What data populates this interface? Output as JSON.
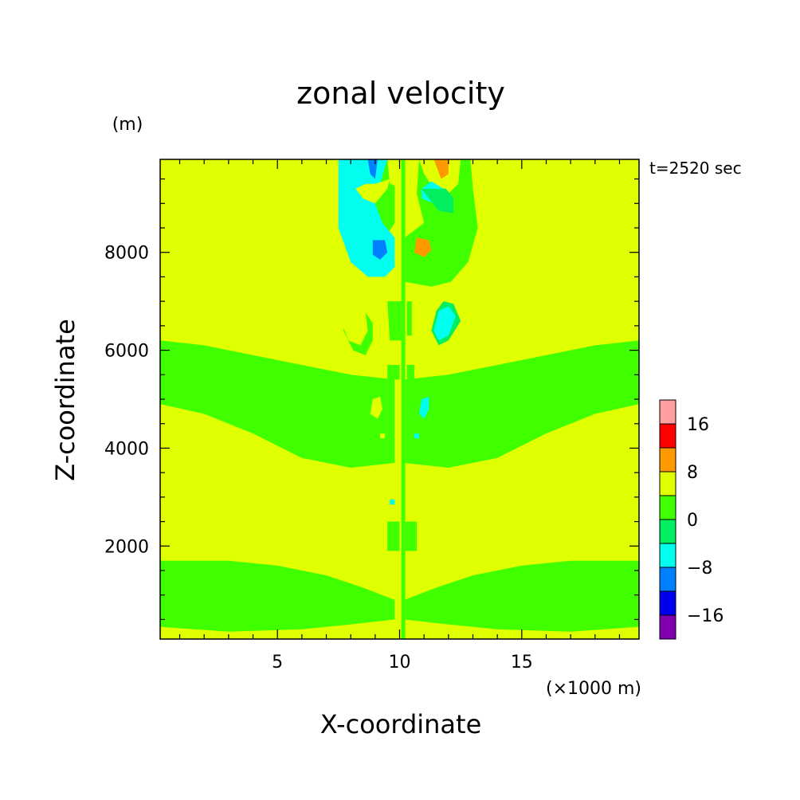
{
  "chart_data": {
    "type": "heatmap",
    "title": "zonal velocity",
    "time_label": "t=2520 sec",
    "xlabel": "X-coordinate",
    "x_unit": "(×1000 m)",
    "ylabel": "Z-coordinate",
    "y_unit": "(m)",
    "xlim": [
      0.2,
      19.8
    ],
    "ylim": [
      100,
      9900
    ],
    "x_ticks": [
      5,
      10,
      15
    ],
    "x_tick_labels": [
      "5",
      "10",
      "15"
    ],
    "y_ticks": [
      2000,
      4000,
      6000,
      8000
    ],
    "y_tick_labels": [
      "2000",
      "4000",
      "6000",
      "8000"
    ],
    "colorbar": {
      "levels": [
        -20,
        -16,
        -12,
        -8,
        -4,
        0,
        4,
        8,
        12,
        16,
        20
      ],
      "colors": [
        "#8000b0",
        "#0000ee",
        "#0080ff",
        "#00ffee",
        "#00ee60",
        "#40ff00",
        "#e0ff00",
        "#ff9900",
        "#ff0000",
        "#ff9f9f"
      ],
      "tick_labels": [
        {
          "value": 16,
          "label": "16"
        },
        {
          "value": 8,
          "label": "8"
        },
        {
          "value": 0,
          "label": "0"
        },
        {
          "value": -8,
          "label": "−8"
        },
        {
          "value": -16,
          "label": "−16"
        }
      ]
    },
    "background_level": 1,
    "regions": [
      {
        "level": 0,
        "points": [
          [
            0.2,
            6200
          ],
          [
            2,
            6100
          ],
          [
            4,
            5900
          ],
          [
            6,
            5700
          ],
          [
            8,
            5500
          ],
          [
            9.8,
            5400
          ],
          [
            9.8,
            3700
          ],
          [
            8,
            3600
          ],
          [
            6,
            3800
          ],
          [
            4,
            4300
          ],
          [
            2,
            4700
          ],
          [
            0.2,
            4900
          ]
        ]
      },
      {
        "level": 0,
        "points": [
          [
            19.8,
            6200
          ],
          [
            18,
            6100
          ],
          [
            16,
            5900
          ],
          [
            14,
            5700
          ],
          [
            12,
            5500
          ],
          [
            10.2,
            5400
          ],
          [
            10.2,
            3700
          ],
          [
            12,
            3600
          ],
          [
            14,
            3800
          ],
          [
            16,
            4300
          ],
          [
            18,
            4700
          ],
          [
            19.8,
            4900
          ]
        ]
      },
      {
        "level": 0,
        "points": [
          [
            0.2,
            1700
          ],
          [
            3,
            1700
          ],
          [
            5,
            1600
          ],
          [
            7,
            1400
          ],
          [
            8.5,
            1150
          ],
          [
            9.8,
            900
          ],
          [
            9.8,
            500
          ],
          [
            8,
            400
          ],
          [
            6,
            300
          ],
          [
            3,
            250
          ],
          [
            0.2,
            350
          ]
        ]
      },
      {
        "level": 0,
        "points": [
          [
            19.8,
            1700
          ],
          [
            17,
            1700
          ],
          [
            15,
            1600
          ],
          [
            13,
            1400
          ],
          [
            11.5,
            1150
          ],
          [
            10.2,
            900
          ],
          [
            10.2,
            500
          ],
          [
            12,
            400
          ],
          [
            14,
            300
          ],
          [
            17,
            250
          ],
          [
            19.8,
            350
          ]
        ]
      },
      {
        "level": 0,
        "points": [
          [
            7.9,
            6900
          ],
          [
            8.5,
            6850
          ],
          [
            8.9,
            6550
          ],
          [
            8.9,
            6200
          ],
          [
            8.6,
            5900
          ],
          [
            8.1,
            6000
          ],
          [
            7.7,
            6400
          ]
        ]
      },
      {
        "level": 0,
        "points": [
          [
            8.7,
            9900
          ],
          [
            9.8,
            9900
          ],
          [
            9.8,
            8600
          ],
          [
            9.4,
            8300
          ],
          [
            9.1,
            8700
          ],
          [
            8.8,
            9300
          ]
        ]
      },
      {
        "level": 0,
        "points": [
          [
            8.7,
            4950
          ],
          [
            9.0,
            5000
          ],
          [
            9.2,
            4800
          ],
          [
            9.0,
            4500
          ],
          [
            8.6,
            4600
          ]
        ]
      },
      {
        "level": 0,
        "points": [
          [
            10.8,
            9900
          ],
          [
            12.9,
            9900
          ],
          [
            13.0,
            9300
          ],
          [
            13.2,
            8500
          ],
          [
            12.8,
            7800
          ],
          [
            12.1,
            7400
          ],
          [
            11.3,
            7300
          ],
          [
            10.2,
            7400
          ],
          [
            10.2,
            8300
          ],
          [
            11.0,
            8600
          ],
          [
            10.7,
            9200
          ]
        ]
      },
      {
        "level": 1,
        "points": [
          [
            10.8,
            9900
          ],
          [
            12.5,
            9900
          ],
          [
            12.4,
            9400
          ],
          [
            12.0,
            9200
          ],
          [
            11.4,
            9300
          ],
          [
            11.0,
            9600
          ]
        ]
      },
      {
        "level": 1,
        "points": [
          [
            9.5,
            9900
          ],
          [
            10.2,
            9900
          ],
          [
            10.2,
            9300
          ],
          [
            9.6,
            9400
          ]
        ]
      },
      {
        "level": 2,
        "points": [
          [
            11.4,
            9900
          ],
          [
            12.0,
            9900
          ],
          [
            12.0,
            9600
          ],
          [
            11.7,
            9500
          ]
        ]
      },
      {
        "level": -2,
        "points": [
          [
            7.5,
            9900
          ],
          [
            9.5,
            9900
          ],
          [
            9.2,
            9400
          ],
          [
            9.0,
            9000
          ],
          [
            9.3,
            8600
          ],
          [
            9.8,
            8300
          ],
          [
            9.8,
            7700
          ],
          [
            9.4,
            7500
          ],
          [
            8.7,
            7500
          ],
          [
            8.0,
            7800
          ],
          [
            7.5,
            8500
          ]
        ]
      },
      {
        "level": -3,
        "points": [
          [
            8.7,
            9900
          ],
          [
            9.1,
            9900
          ],
          [
            9.0,
            9500
          ],
          [
            8.8,
            9600
          ]
        ]
      },
      {
        "level": -3,
        "points": [
          [
            8.9,
            8250
          ],
          [
            9.4,
            8250
          ],
          [
            9.5,
            8000
          ],
          [
            9.2,
            7850
          ],
          [
            8.9,
            7950
          ]
        ]
      },
      {
        "level": 1,
        "points": [
          [
            8.2,
            9300
          ],
          [
            8.5,
            9100
          ],
          [
            9.0,
            9000
          ],
          [
            9.5,
            9300
          ],
          [
            9.6,
            9500
          ],
          [
            9.0,
            9400
          ],
          [
            8.6,
            9400
          ]
        ]
      },
      {
        "level": 1,
        "points": [
          [
            7.7,
            6950
          ],
          [
            8.2,
            7050
          ],
          [
            8.6,
            6800
          ],
          [
            8.7,
            6400
          ],
          [
            8.4,
            6100
          ],
          [
            7.9,
            6200
          ],
          [
            7.6,
            6600
          ]
        ]
      },
      {
        "level": 2,
        "points": [
          [
            10.7,
            8300
          ],
          [
            11.2,
            8250
          ],
          [
            11.3,
            8050
          ],
          [
            11.0,
            7900
          ],
          [
            10.6,
            8000
          ]
        ]
      },
      {
        "level": -2,
        "points": [
          [
            10.9,
            9300
          ],
          [
            11.3,
            9450
          ],
          [
            11.8,
            9300
          ],
          [
            11.8,
            9050
          ],
          [
            11.4,
            9000
          ],
          [
            10.9,
            9100
          ]
        ]
      },
      {
        "level": -1,
        "points": [
          [
            10.9,
            9300
          ],
          [
            11.9,
            9300
          ],
          [
            12.2,
            9100
          ],
          [
            12.2,
            8800
          ],
          [
            11.6,
            8850
          ],
          [
            11.2,
            9100
          ]
        ]
      },
      {
        "level": -1,
        "points": [
          [
            11.5,
            6800
          ],
          [
            11.8,
            7000
          ],
          [
            12.2,
            6950
          ],
          [
            12.5,
            6600
          ],
          [
            12.0,
            6200
          ],
          [
            11.6,
            6100
          ],
          [
            11.3,
            6400
          ]
        ]
      },
      {
        "level": -2,
        "points": [
          [
            11.6,
            6800
          ],
          [
            12.0,
            6900
          ],
          [
            12.3,
            6700
          ],
          [
            12.0,
            6300
          ],
          [
            11.6,
            6200
          ],
          [
            11.4,
            6400
          ]
        ]
      },
      {
        "level": 1,
        "points": [
          [
            8.9,
            5000
          ],
          [
            9.2,
            5050
          ],
          [
            9.3,
            4800
          ],
          [
            9.1,
            4600
          ],
          [
            8.8,
            4700
          ]
        ]
      },
      {
        "level": -2,
        "points": [
          [
            10.9,
            5000
          ],
          [
            11.2,
            5050
          ],
          [
            11.2,
            4800
          ],
          [
            11.0,
            4600
          ],
          [
            10.8,
            4700
          ]
        ]
      },
      {
        "level": 1,
        "points": [
          [
            9.2,
            4300
          ],
          [
            9.4,
            4300
          ],
          [
            9.4,
            4200
          ],
          [
            9.2,
            4200
          ]
        ]
      },
      {
        "level": -2,
        "points": [
          [
            10.6,
            4300
          ],
          [
            10.8,
            4300
          ],
          [
            10.8,
            4200
          ],
          [
            10.6,
            4200
          ]
        ]
      },
      {
        "level": -2,
        "points": [
          [
            9.6,
            2950
          ],
          [
            9.8,
            2950
          ],
          [
            9.8,
            2850
          ],
          [
            9.6,
            2850
          ]
        ]
      },
      {
        "level": 1,
        "points": [
          [
            10.4,
            2950
          ],
          [
            10.6,
            2950
          ],
          [
            10.6,
            2850
          ],
          [
            10.4,
            2850
          ]
        ]
      },
      {
        "level": 0,
        "points": [
          [
            9.5,
            7000
          ],
          [
            10.2,
            7000
          ],
          [
            10.2,
            6200
          ],
          [
            9.6,
            6200
          ]
        ]
      },
      {
        "level": 0,
        "points": [
          [
            10.3,
            7000
          ],
          [
            10.5,
            7000
          ],
          [
            10.5,
            6300
          ],
          [
            10.3,
            6300
          ]
        ]
      },
      {
        "level": 0,
        "points": [
          [
            9.5,
            5700
          ],
          [
            10.0,
            5700
          ],
          [
            10.0,
            5400
          ],
          [
            9.5,
            5400
          ]
        ]
      },
      {
        "level": 0,
        "points": [
          [
            10.3,
            5700
          ],
          [
            10.6,
            5700
          ],
          [
            10.6,
            5400
          ],
          [
            10.3,
            5400
          ]
        ]
      },
      {
        "level": 0,
        "points": [
          [
            9.5,
            2500
          ],
          [
            10.0,
            2500
          ],
          [
            10.0,
            1900
          ],
          [
            9.5,
            1900
          ]
        ]
      },
      {
        "level": 0,
        "points": [
          [
            10.2,
            2500
          ],
          [
            10.7,
            2500
          ],
          [
            10.7,
            1900
          ],
          [
            10.2,
            1900
          ]
        ]
      }
    ]
  }
}
